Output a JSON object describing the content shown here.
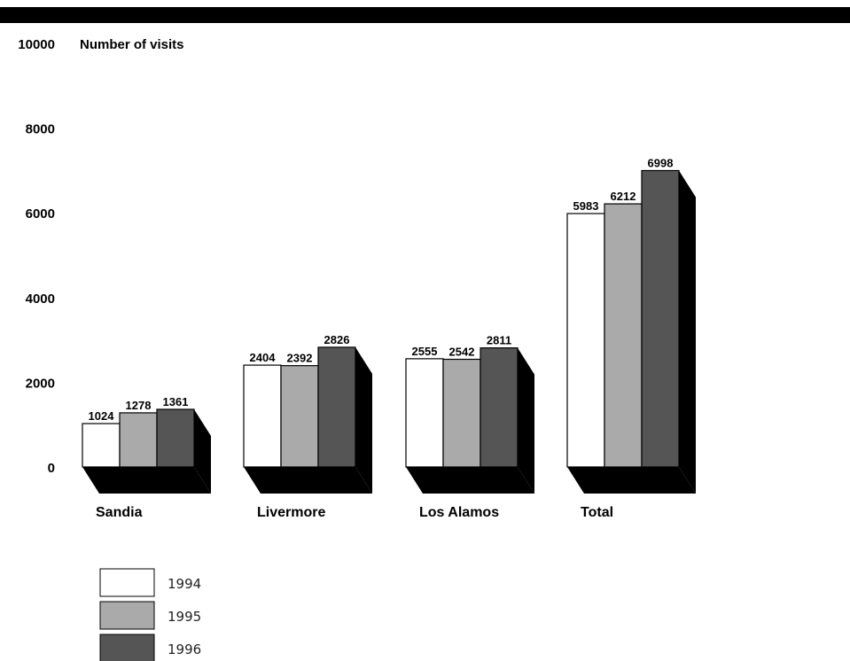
{
  "chart_data": {
    "type": "bar",
    "ylabel": "Number of visits",
    "ylim": [
      0,
      10000
    ],
    "yticks": [
      0,
      2000,
      4000,
      6000,
      8000,
      10000
    ],
    "categories": [
      "Sandia",
      "Livermore",
      "Los Alamos",
      "Total"
    ],
    "series": [
      {
        "name": "1994",
        "color": "#ffffff",
        "values": [
          1024,
          2404,
          2555,
          5983
        ]
      },
      {
        "name": "1995",
        "color": "#aaaaaa",
        "values": [
          1278,
          2392,
          2542,
          6212
        ]
      },
      {
        "name": "1996",
        "color": "#555555",
        "values": [
          1361,
          2826,
          2811,
          6998
        ]
      }
    ],
    "legend_position": "bottom-left",
    "style": "3d-bars-with-shadow"
  }
}
